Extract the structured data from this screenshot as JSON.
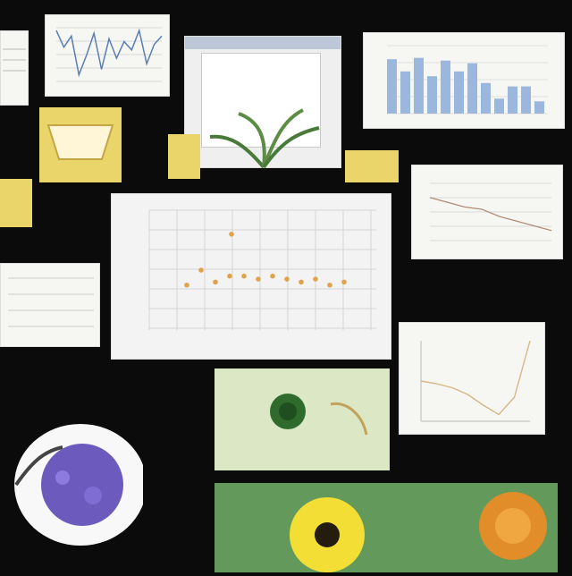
{
  "collage": {
    "description_free": true
  },
  "charts": {
    "line_top_left": {
      "type": "line",
      "values": [
        0.64,
        0.58,
        0.62,
        0.48,
        0.55,
        0.63,
        0.5,
        0.61,
        0.54,
        0.6,
        0.57,
        0.64,
        0.52,
        0.59,
        0.62
      ]
    },
    "bar_top_right": {
      "type": "bar",
      "values": [
        80,
        62,
        82,
        55,
        78,
        62,
        74,
        45,
        22,
        40,
        40,
        18
      ]
    },
    "scatter_center": {
      "type": "scatter",
      "values": [
        55,
        60,
        56,
        58,
        58,
        57,
        58,
        57,
        56,
        57,
        55,
        56
      ],
      "highlight": [
        72
      ]
    },
    "line_right_mid": {
      "type": "line",
      "values": [
        54,
        52,
        50,
        49,
        46,
        44,
        42,
        40
      ]
    },
    "line_bottom_right": {
      "type": "line",
      "values": [
        60,
        58,
        55,
        50,
        42,
        35,
        48,
        90
      ]
    }
  },
  "colors": {
    "background": "#0b0b0b",
    "yellow": "#e9d56a",
    "orange_points": "#e0a24a",
    "blue_bars": "#9cb7de",
    "green": "#3f7a45",
    "purple": "#6c5bbd"
  }
}
